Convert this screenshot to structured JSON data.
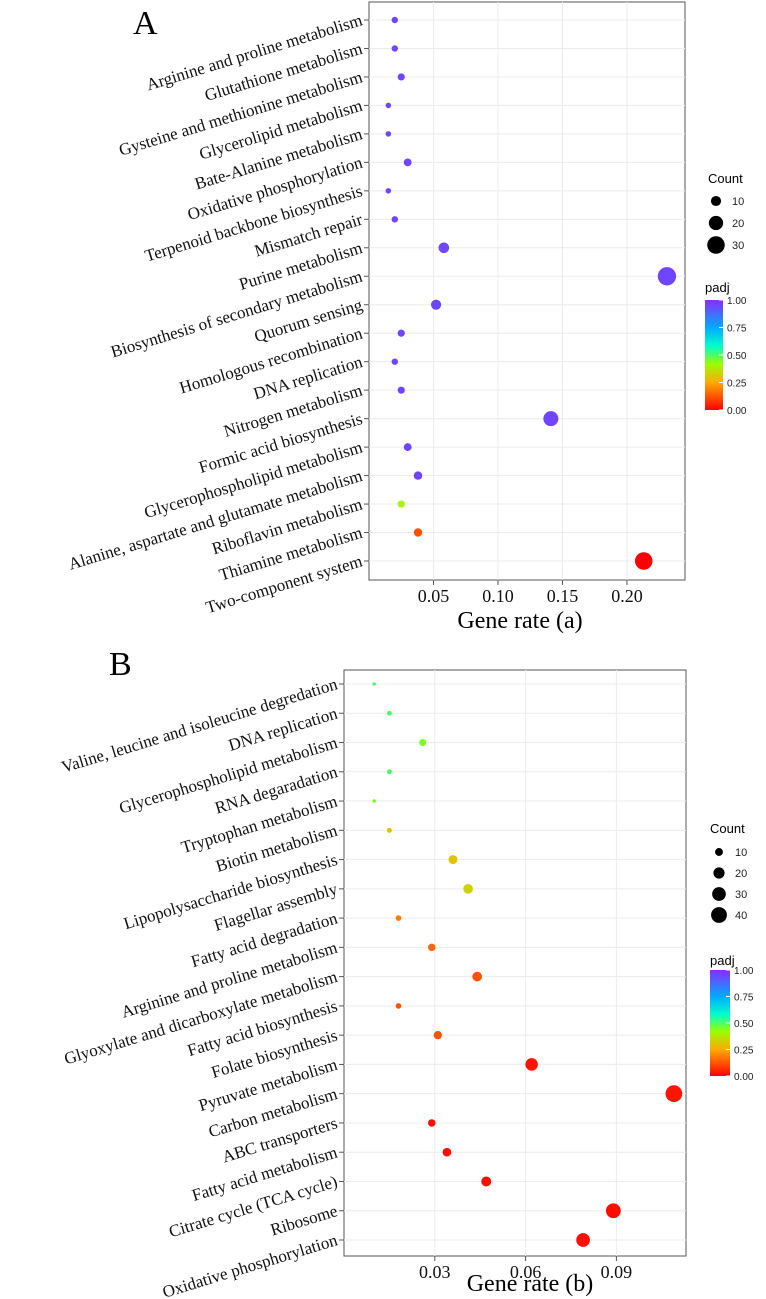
{
  "panels": [
    {
      "panel_label": "A",
      "chart_data": {
        "type": "scatter",
        "title": "",
        "xlabel": "Gene rate (a)",
        "ylabel": "",
        "xlim": [
          0.0,
          0.245
        ],
        "xticks": [
          0.05,
          0.1,
          0.15,
          0.2
        ],
        "xtick_labels": [
          "0.05",
          "0.10",
          "0.15",
          "0.20"
        ],
        "grid": true,
        "categories": [
          "Arginine and proline metabolism",
          "Glutathione metabolism",
          "Gysteine and methionine metabolism",
          "Glycerolipid metabolism",
          "Bate-Alanine metabolism",
          "Oxidative phosphorylation",
          "Terpenoid backbone biosynthesis",
          "Mismatch repair",
          "Purine metabolism",
          "Biosynthesis of secondary metabolism",
          "Quorum sensing",
          "Homologous recombination",
          "DNA replication",
          "Nitrogen metabolism",
          "Formic acid biosynthesis",
          "Glycerophospholipid metabolism",
          "Alanine, aspartate and glutamate metabolism",
          "Riboflavin metabolism",
          "Thiamine metabolism",
          "Two-component system"
        ],
        "gene_rate": [
          0.02,
          0.02,
          0.025,
          0.015,
          0.015,
          0.03,
          0.015,
          0.02,
          0.058,
          0.231,
          0.052,
          0.025,
          0.02,
          0.025,
          0.141,
          0.03,
          0.038,
          0.025,
          0.038,
          0.213
        ],
        "count": [
          4,
          4,
          5,
          3,
          3,
          6,
          3,
          4,
          11,
          33,
          10,
          5,
          4,
          5,
          22,
          6,
          7,
          5,
          7,
          30
        ],
        "padj": [
          0.95,
          0.95,
          0.95,
          0.95,
          0.95,
          0.95,
          0.95,
          0.95,
          0.95,
          0.95,
          0.95,
          0.95,
          0.95,
          0.95,
          0.95,
          0.95,
          0.95,
          0.4,
          0.12,
          0.0
        ],
        "size_legend": {
          "title": "Count",
          "values": [
            10,
            20,
            30
          ],
          "labels": [
            "10",
            "20",
            "30"
          ]
        },
        "color_legend": {
          "title": "padj",
          "range": [
            0,
            1
          ],
          "ticks": [
            "1.00",
            "0.75",
            "0.50",
            "0.25",
            "0.00"
          ]
        },
        "legend_position": "right"
      }
    },
    {
      "panel_label": "B",
      "chart_data": {
        "type": "scatter",
        "title": "",
        "xlabel": "Gene rate (b)",
        "ylabel": "",
        "xlim": [
          0.0,
          0.113
        ],
        "xticks": [
          0.03,
          0.06,
          0.09
        ],
        "xtick_labels": [
          "0.03",
          "0.06",
          "0.09"
        ],
        "grid": true,
        "categories": [
          "Valine, leucine and isoleucine degredation",
          "DNA replication",
          "Glycerophospholipid metabolism",
          "RNA degaradation",
          "Tryptophan metabolism",
          "Biotin metabolism",
          "Lipopolysaccharide biosynthesis",
          "Flagellar assembly",
          "Fatty acid degradation",
          "Arginine and proline metabolism",
          "Glyoxylate and dicarboxylate metabolism",
          "Fatty acid biosynthesis",
          "Folate biosynthesis",
          "Pyruvate metabolism",
          "Carbon metabolism",
          "ABC transporters",
          "Fatty acid metabolism",
          "Citrate cycle (TCA cycle)",
          "Ribosome",
          "Oxidative phosphorylation"
        ],
        "gene_rate": [
          0.01,
          0.015,
          0.026,
          0.015,
          0.01,
          0.015,
          0.036,
          0.041,
          0.018,
          0.029,
          0.044,
          0.018,
          0.031,
          0.062,
          0.109,
          0.029,
          0.034,
          0.047,
          0.089,
          0.079
        ],
        "count": [
          2,
          4,
          8,
          4,
          2,
          4,
          13,
          15,
          5,
          9,
          15,
          5,
          11,
          25,
          45,
          9,
          12,
          16,
          35,
          30
        ],
        "padj": [
          0.5,
          0.5,
          0.45,
          0.5,
          0.45,
          0.3,
          0.3,
          0.33,
          0.18,
          0.15,
          0.12,
          0.12,
          0.12,
          0.03,
          0.03,
          0.02,
          0.02,
          0.02,
          0.02,
          0.02
        ],
        "size_legend": {
          "title": "Count",
          "values": [
            10,
            20,
            30,
            40
          ],
          "labels": [
            "10",
            "20",
            "30",
            "40"
          ]
        },
        "color_legend": {
          "title": "padj",
          "range": [
            0,
            1
          ],
          "ticks": [
            "1.00",
            "0.75",
            "0.50",
            "0.25",
            "0.00"
          ]
        },
        "legend_position": "right"
      }
    }
  ]
}
